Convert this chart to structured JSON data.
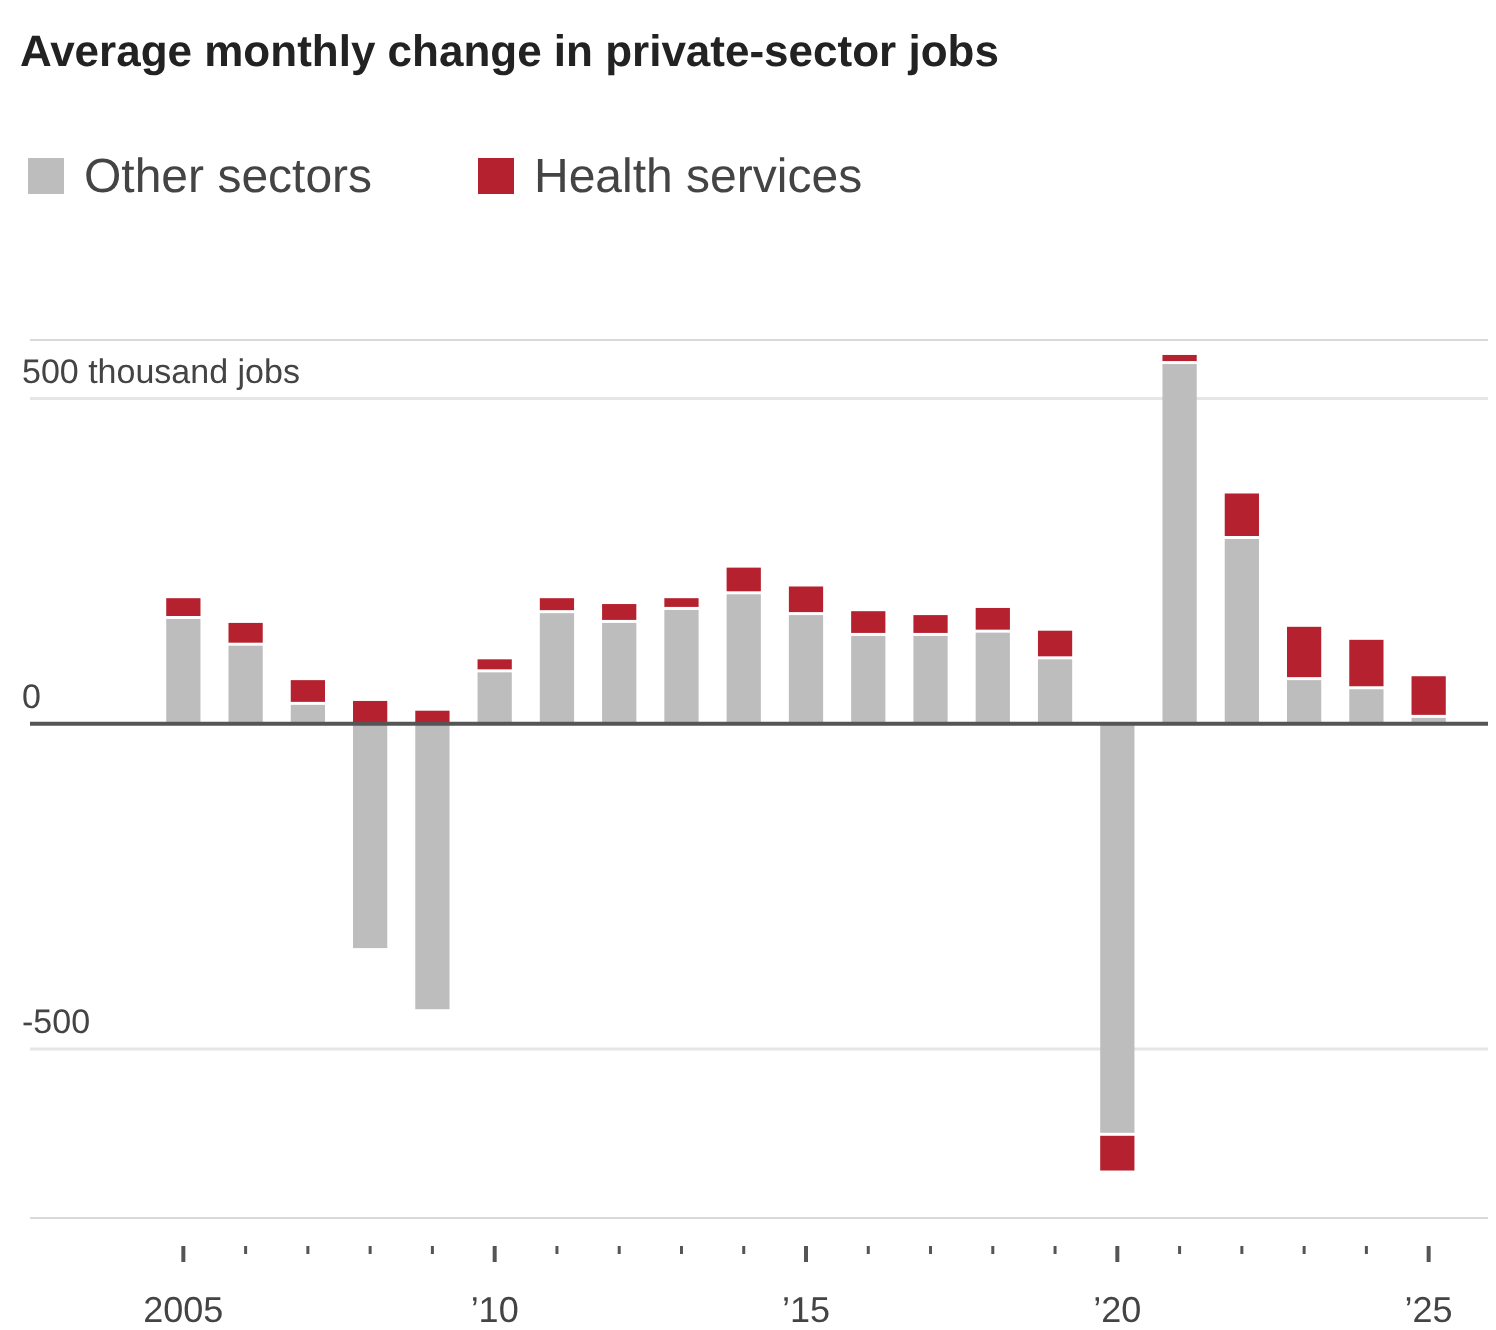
{
  "chart_data": {
    "type": "bar",
    "title": "Average monthly change in private-sector jobs",
    "stacked": true,
    "legend": "top left",
    "grid": "y",
    "categories": [
      "2005",
      null,
      null,
      null,
      null,
      "’10",
      null,
      null,
      null,
      null,
      "’15",
      null,
      null,
      null,
      null,
      "’20",
      null,
      null,
      null,
      null,
      "’25"
    ],
    "series": [
      {
        "name": "Other sectors",
        "color": "#bdbdbd",
        "values": [
          161,
          120,
          29,
          -345,
          -439,
          79,
          170,
          155,
          175,
          199,
          167,
          135,
          135,
          140,
          99,
          -629,
          553,
          284,
          67,
          53,
          9
        ]
      },
      {
        "name": "Health services",
        "color": "#b5212e",
        "values": [
          32,
          35,
          38,
          35,
          20,
          20,
          23,
          29,
          18,
          41,
          44,
          38,
          32,
          38,
          44,
          -58,
          14,
          70,
          82,
          76,
          64
        ]
      }
    ],
    "ylim": [
      -760,
      590
    ],
    "yticks": [
      {
        "value": 500,
        "label": "500 thousand jobs"
      },
      0,
      -500
    ]
  }
}
